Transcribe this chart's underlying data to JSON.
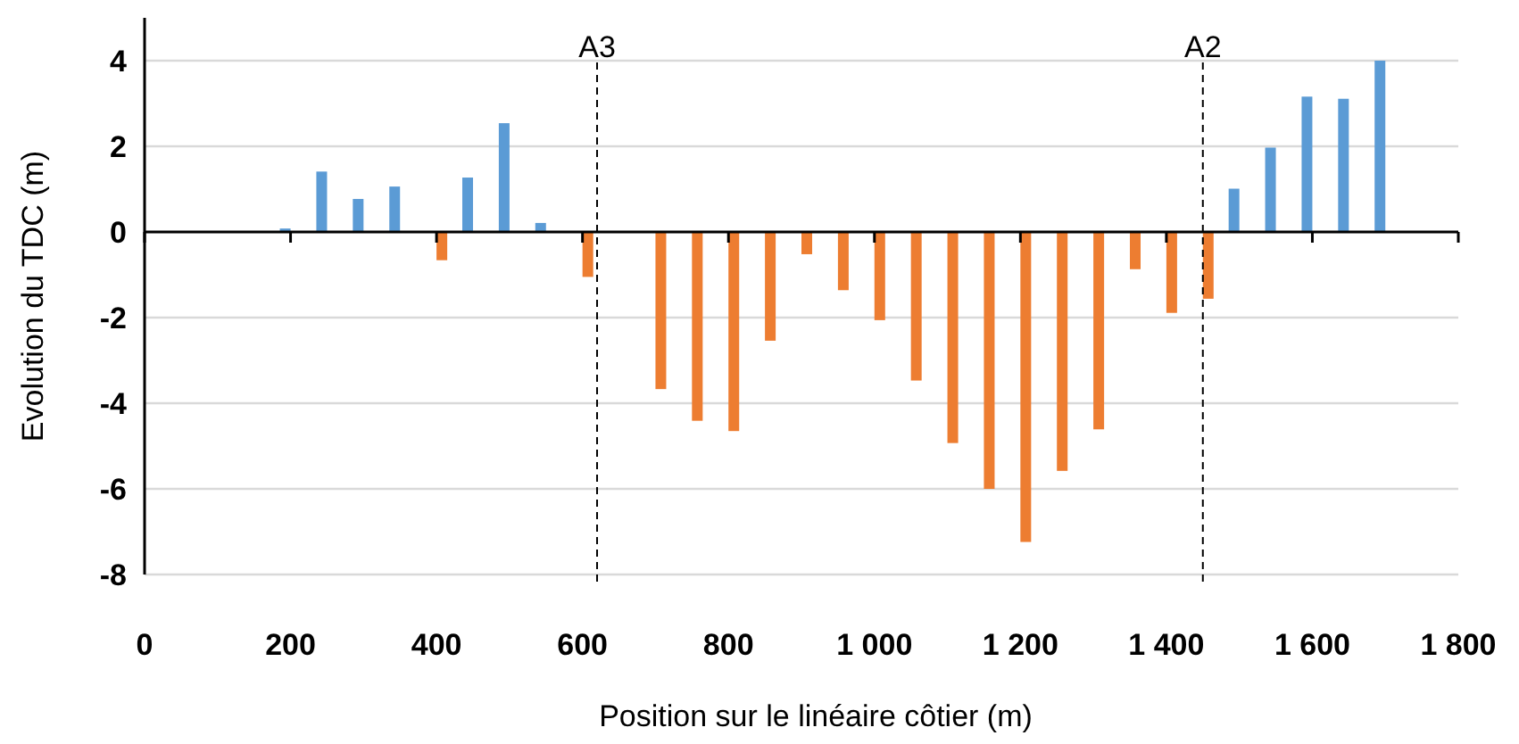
{
  "chart_data": {
    "type": "bar",
    "xlabel": "Position sur le linéaire côtier (m)",
    "ylabel": "Evolution du TDC (m)",
    "xlim": [
      0,
      1800
    ],
    "xticks": [
      0,
      200,
      400,
      600,
      800,
      {
        "value": 1000,
        "label": "1 000"
      },
      {
        "value": 1200,
        "label": "1 200"
      },
      {
        "value": 1400,
        "label": "1 400"
      },
      {
        "value": 1600,
        "label": "1 600"
      },
      {
        "value": 1800,
        "label": "1 800"
      }
    ],
    "ylim": [
      -8,
      5
    ],
    "yticks": [
      -8,
      -6,
      -4,
      -2,
      0,
      2,
      4
    ],
    "grid": "y",
    "series": [
      {
        "color": "#5b9bd5",
        "x": [
          200,
          250,
          300,
          350,
          450,
          500,
          550,
          1500,
          1550,
          1600,
          1650,
          1700
        ],
        "values": [
          0.08,
          1.41,
          0.77,
          1.06,
          1.27,
          2.54,
          0.21,
          1.01,
          1.97,
          3.16,
          3.11,
          4.0
        ]
      },
      {
        "color": "#ed7d31",
        "x": [
          400,
          600,
          700,
          750,
          800,
          850,
          900,
          950,
          1000,
          1050,
          1100,
          1150,
          1200,
          1250,
          1300,
          1350,
          1400,
          1450
        ],
        "values": [
          -0.66,
          -1.05,
          -3.67,
          -4.41,
          -4.65,
          -2.54,
          -0.52,
          -1.36,
          -2.06,
          -3.47,
          -4.93,
          -6.0,
          -7.24,
          -5.58,
          -4.61,
          -0.87,
          -1.89,
          -1.56
        ]
      }
    ],
    "ref_lines": [
      {
        "axis": "x",
        "value": 620,
        "label": "A3",
        "color": "#000000",
        "line_style": "dashed"
      },
      {
        "axis": "x",
        "value": 1450,
        "label": "A2",
        "color": "#000000",
        "line_style": "dashed"
      }
    ]
  }
}
